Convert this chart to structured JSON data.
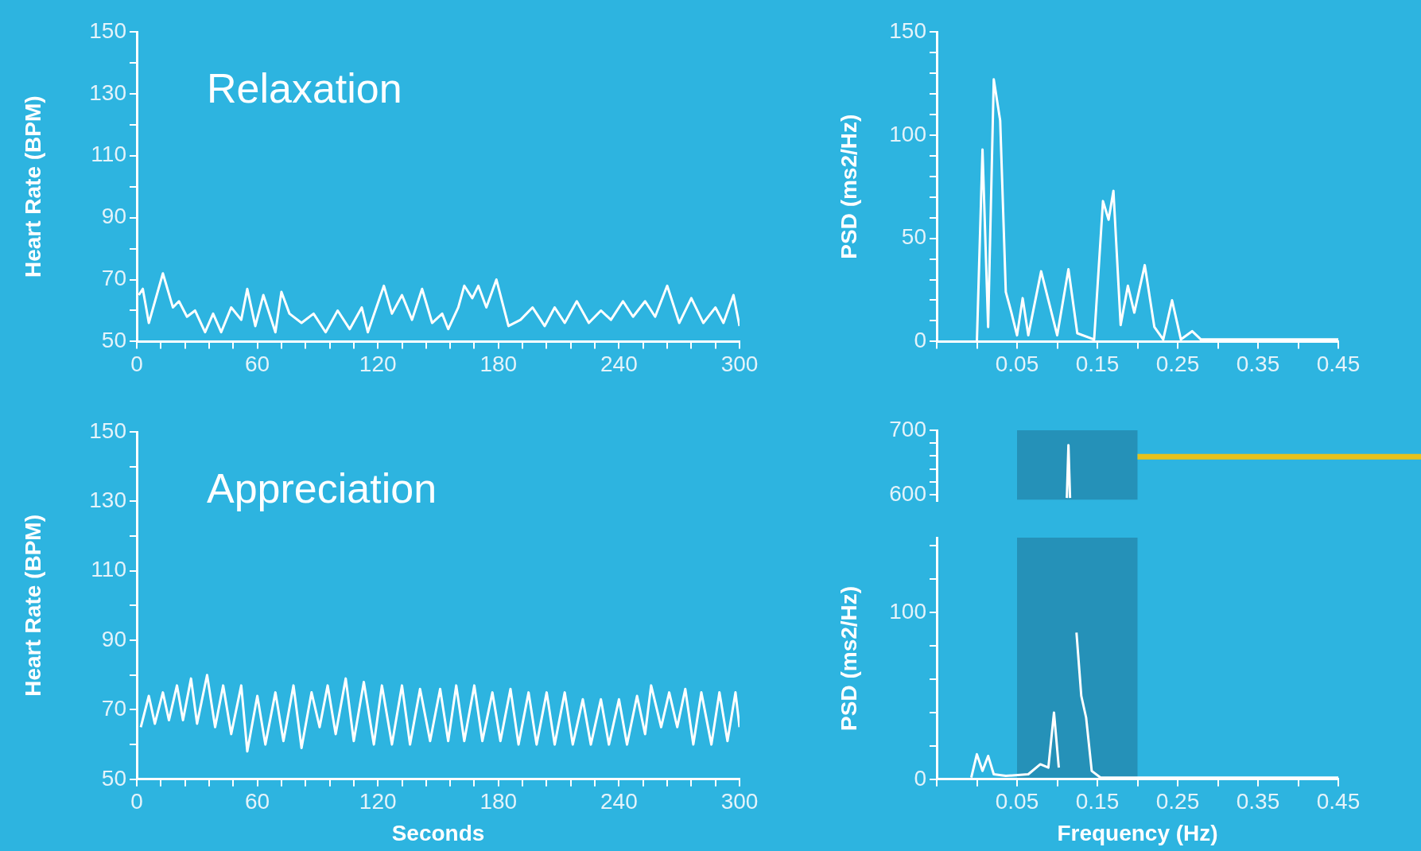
{
  "chart_data": [
    {
      "type": "line",
      "title": "Relaxation",
      "ylabel": "Heart Rate (BPM)",
      "xlim": [
        0,
        300
      ],
      "ylim": [
        50,
        150
      ],
      "grid": false,
      "legend": false,
      "xticks": [
        0,
        {
          "value": 12,
          "label": null
        },
        {
          "value": 24,
          "label": null
        },
        {
          "value": 36,
          "label": null
        },
        {
          "value": 48,
          "label": null
        },
        60,
        {
          "value": 72,
          "label": null
        },
        {
          "value": 84,
          "label": null
        },
        {
          "value": 96,
          "label": null
        },
        {
          "value": 108,
          "label": null
        },
        120,
        {
          "value": 132,
          "label": null
        },
        {
          "value": 144,
          "label": null
        },
        {
          "value": 156,
          "label": null
        },
        {
          "value": 168,
          "label": null
        },
        180,
        {
          "value": 192,
          "label": null
        },
        {
          "value": 204,
          "label": null
        },
        {
          "value": 216,
          "label": null
        },
        {
          "value": 228,
          "label": null
        },
        240,
        {
          "value": 252,
          "label": null
        },
        {
          "value": 264,
          "label": null
        },
        {
          "value": 276,
          "label": null
        },
        {
          "value": 288,
          "label": null
        },
        300
      ],
      "yticks": [
        50,
        {
          "value": 60,
          "label": null
        },
        70,
        {
          "value": 80,
          "label": null
        },
        90,
        {
          "value": 100,
          "label": null
        },
        110,
        {
          "value": 120,
          "label": null
        },
        130,
        {
          "value": 140,
          "label": null
        },
        150
      ],
      "series": [
        {
          "color": "#ffffff",
          "x": [
            1,
            3,
            6,
            13,
            18,
            21,
            25,
            29,
            34,
            38,
            42,
            47,
            52,
            55,
            59,
            63,
            69,
            72,
            76,
            82,
            88,
            94,
            100,
            106,
            112,
            115,
            123,
            127,
            132,
            137,
            142,
            147,
            152,
            155,
            160,
            163,
            167,
            170,
            174,
            179,
            185,
            191,
            197,
            203,
            208,
            213,
            219,
            225,
            231,
            236,
            242,
            247,
            253,
            258,
            264,
            270,
            276,
            282,
            288,
            292,
            297,
            300
          ],
          "values": [
            65,
            67,
            56,
            72,
            61,
            63,
            58,
            60,
            53,
            59,
            53,
            61,
            57,
            67,
            55,
            65,
            53,
            66,
            59,
            56,
            59,
            53,
            60,
            54,
            61,
            53,
            68,
            59,
            65,
            57,
            67,
            56,
            59,
            54,
            61,
            68,
            64,
            68,
            61,
            70,
            55,
            57,
            61,
            55,
            61,
            56,
            63,
            56,
            60,
            57,
            63,
            58,
            63,
            58,
            68,
            56,
            64,
            56,
            61,
            56,
            65,
            55
          ]
        }
      ]
    },
    {
      "type": "line",
      "ylabel": "PSD (ms2/Hz)",
      "xlim": [
        -0.05,
        0.45
      ],
      "ylim": [
        0,
        150
      ],
      "grid": false,
      "legend": false,
      "xticks": [
        {
          "value": -0.05,
          "label": null
        },
        {
          "value": 0,
          "label": null
        },
        0.05,
        {
          "value": 0.1,
          "label": null
        },
        0.15,
        {
          "value": 0.2,
          "label": null
        },
        0.25,
        {
          "value": 0.3,
          "label": null
        },
        0.35,
        {
          "value": 0.4,
          "label": null
        },
        0.45
      ],
      "yticks": [
        0,
        {
          "value": 10,
          "label": null
        },
        {
          "value": 20,
          "label": null
        },
        {
          "value": 30,
          "label": null
        },
        {
          "value": 40,
          "label": null
        },
        50,
        {
          "value": 60,
          "label": null
        },
        {
          "value": 70,
          "label": null
        },
        {
          "value": 80,
          "label": null
        },
        {
          "value": 90,
          "label": null
        },
        100,
        {
          "value": 110,
          "label": null
        },
        {
          "value": 120,
          "label": null
        },
        {
          "value": 130,
          "label": null
        },
        {
          "value": 140,
          "label": null
        },
        150
      ],
      "series": [
        {
          "color": "#ffffff",
          "x": [
            0,
            0.007,
            0.014,
            0.021,
            0.029,
            0.036,
            0.043,
            0.05,
            0.057,
            0.064,
            0.08,
            0.089,
            0.1,
            0.114,
            0.125,
            0.146,
            0.157,
            0.164,
            0.17,
            0.179,
            0.188,
            0.196,
            0.209,
            0.221,
            0.232,
            0.243,
            0.254,
            0.268,
            0.279,
            0.35,
            0.45
          ],
          "values": [
            0,
            93,
            7,
            127,
            107,
            24,
            14,
            3,
            21,
            3,
            34,
            20,
            3,
            35,
            4,
            1,
            68,
            59,
            73,
            8,
            27,
            14,
            37,
            7,
            1,
            20,
            1,
            5,
            1,
            1,
            1
          ]
        }
      ]
    },
    {
      "type": "line",
      "title": "Appreciation",
      "ylabel": "Heart Rate (BPM)",
      "xlabel": "Seconds",
      "xlim": [
        0,
        300
      ],
      "ylim": [
        50,
        150
      ],
      "grid": false,
      "legend": false,
      "xticks": [
        0,
        {
          "value": 12,
          "label": null
        },
        {
          "value": 24,
          "label": null
        },
        {
          "value": 36,
          "label": null
        },
        {
          "value": 48,
          "label": null
        },
        60,
        {
          "value": 72,
          "label": null
        },
        {
          "value": 84,
          "label": null
        },
        {
          "value": 96,
          "label": null
        },
        {
          "value": 108,
          "label": null
        },
        120,
        {
          "value": 132,
          "label": null
        },
        {
          "value": 144,
          "label": null
        },
        {
          "value": 156,
          "label": null
        },
        {
          "value": 168,
          "label": null
        },
        180,
        {
          "value": 192,
          "label": null
        },
        {
          "value": 204,
          "label": null
        },
        {
          "value": 216,
          "label": null
        },
        {
          "value": 228,
          "label": null
        },
        240,
        {
          "value": 252,
          "label": null
        },
        {
          "value": 264,
          "label": null
        },
        {
          "value": 276,
          "label": null
        },
        {
          "value": 288,
          "label": null
        },
        300
      ],
      "yticks": [
        50,
        {
          "value": 60,
          "label": null
        },
        70,
        {
          "value": 80,
          "label": null
        },
        90,
        {
          "value": 100,
          "label": null
        },
        110,
        {
          "value": 120,
          "label": null
        },
        130,
        {
          "value": 140,
          "label": null
        },
        150
      ],
      "series": [
        {
          "color": "#ffffff",
          "x": [
            2,
            6,
            9,
            13,
            16,
            20,
            23,
            27,
            30,
            35,
            39,
            43,
            47,
            52,
            55,
            60,
            64,
            69,
            73,
            78,
            82,
            87,
            91,
            95,
            99,
            104,
            108,
            113,
            118,
            122,
            127,
            132,
            136,
            141,
            146,
            151,
            155,
            159,
            163,
            168,
            172,
            177,
            181,
            186,
            190,
            195,
            199,
            204,
            208,
            213,
            217,
            222,
            226,
            231,
            235,
            240,
            244,
            249,
            253,
            256,
            261,
            265,
            269,
            273,
            277,
            281,
            286,
            290,
            294,
            298,
            300
          ],
          "values": [
            65,
            74,
            66,
            75,
            67,
            77,
            67,
            79,
            66,
            80,
            65,
            77,
            63,
            77,
            58,
            74,
            60,
            75,
            61,
            77,
            59,
            75,
            65,
            77,
            63,
            79,
            61,
            78,
            60,
            77,
            60,
            77,
            60,
            76,
            61,
            76,
            61,
            77,
            61,
            77,
            61,
            75,
            61,
            76,
            60,
            75,
            60,
            75,
            60,
            75,
            60,
            73,
            60,
            73,
            60,
            73,
            60,
            74,
            63,
            77,
            65,
            75,
            65,
            76,
            60,
            75,
            60,
            75,
            61,
            75,
            65
          ]
        }
      ]
    },
    {
      "type": "line",
      "xlim": [
        -0.05,
        0.45
      ],
      "ylim": [
        590,
        700
      ],
      "grid": false,
      "legend": false,
      "tick_labels": "y",
      "yticks": [
        {
          "value": 600,
          "label": "600"
        },
        {
          "value": 620,
          "label": null
        },
        {
          "value": 640,
          "label": null
        },
        {
          "value": 660,
          "label": null
        },
        {
          "value": 680,
          "label": null
        },
        700
      ],
      "bands": [
        {
          "axis": "x",
          "from": 0.05,
          "to": 0.2,
          "color": "#2591b8"
        }
      ],
      "ref_lines": [
        {
          "axis": "y",
          "value": 659,
          "color": "#e6c21c"
        }
      ],
      "series": [
        {
          "color": "#ffffff",
          "x": [
            0.112,
            0.114,
            0.116
          ],
          "values": [
            595,
            677,
            595
          ]
        }
      ]
    },
    {
      "type": "line",
      "ylabel": "PSD (ms2/Hz)",
      "xlabel": "Frequency (Hz)",
      "xlim": [
        -0.05,
        0.45
      ],
      "ylim": [
        0,
        145
      ],
      "grid": false,
      "legend": false,
      "xticks": [
        {
          "value": -0.05,
          "label": null
        },
        {
          "value": 0,
          "label": null
        },
        0.05,
        {
          "value": 0.1,
          "label": null
        },
        0.15,
        {
          "value": 0.2,
          "label": null
        },
        0.25,
        {
          "value": 0.3,
          "label": null
        },
        0.35,
        {
          "value": 0.4,
          "label": null
        },
        0.45
      ],
      "yticks": [
        0,
        {
          "value": 20,
          "label": null
        },
        {
          "value": 40,
          "label": null
        },
        {
          "value": 60,
          "label": null
        },
        {
          "value": 80,
          "label": null
        },
        100,
        {
          "value": 120,
          "label": null
        },
        {
          "value": 140,
          "label": null
        }
      ],
      "bands": [
        {
          "axis": "x",
          "from": 0.05,
          "to": 0.2,
          "color": "#2591b8"
        }
      ],
      "series": [
        {
          "color": "#ffffff",
          "x": [
            -0.007,
            0,
            0.007,
            0.014,
            0.021,
            0.036,
            0.064,
            0.079,
            0.089,
            0.096,
            0.102,
            0.107,
            0.114,
            0.12,
            0.124,
            0.13,
            0.136,
            0.143,
            0.154,
            0.2,
            0.25,
            0.3,
            0.35,
            0.4,
            0.45
          ],
          "values": [
            1,
            15,
            5,
            14,
            3,
            2,
            3,
            9,
            7,
            40,
            7,
            null,
            null,
            null,
            88,
            50,
            37,
            5,
            1,
            1,
            1,
            1,
            1,
            1,
            1
          ]
        }
      ]
    }
  ]
}
